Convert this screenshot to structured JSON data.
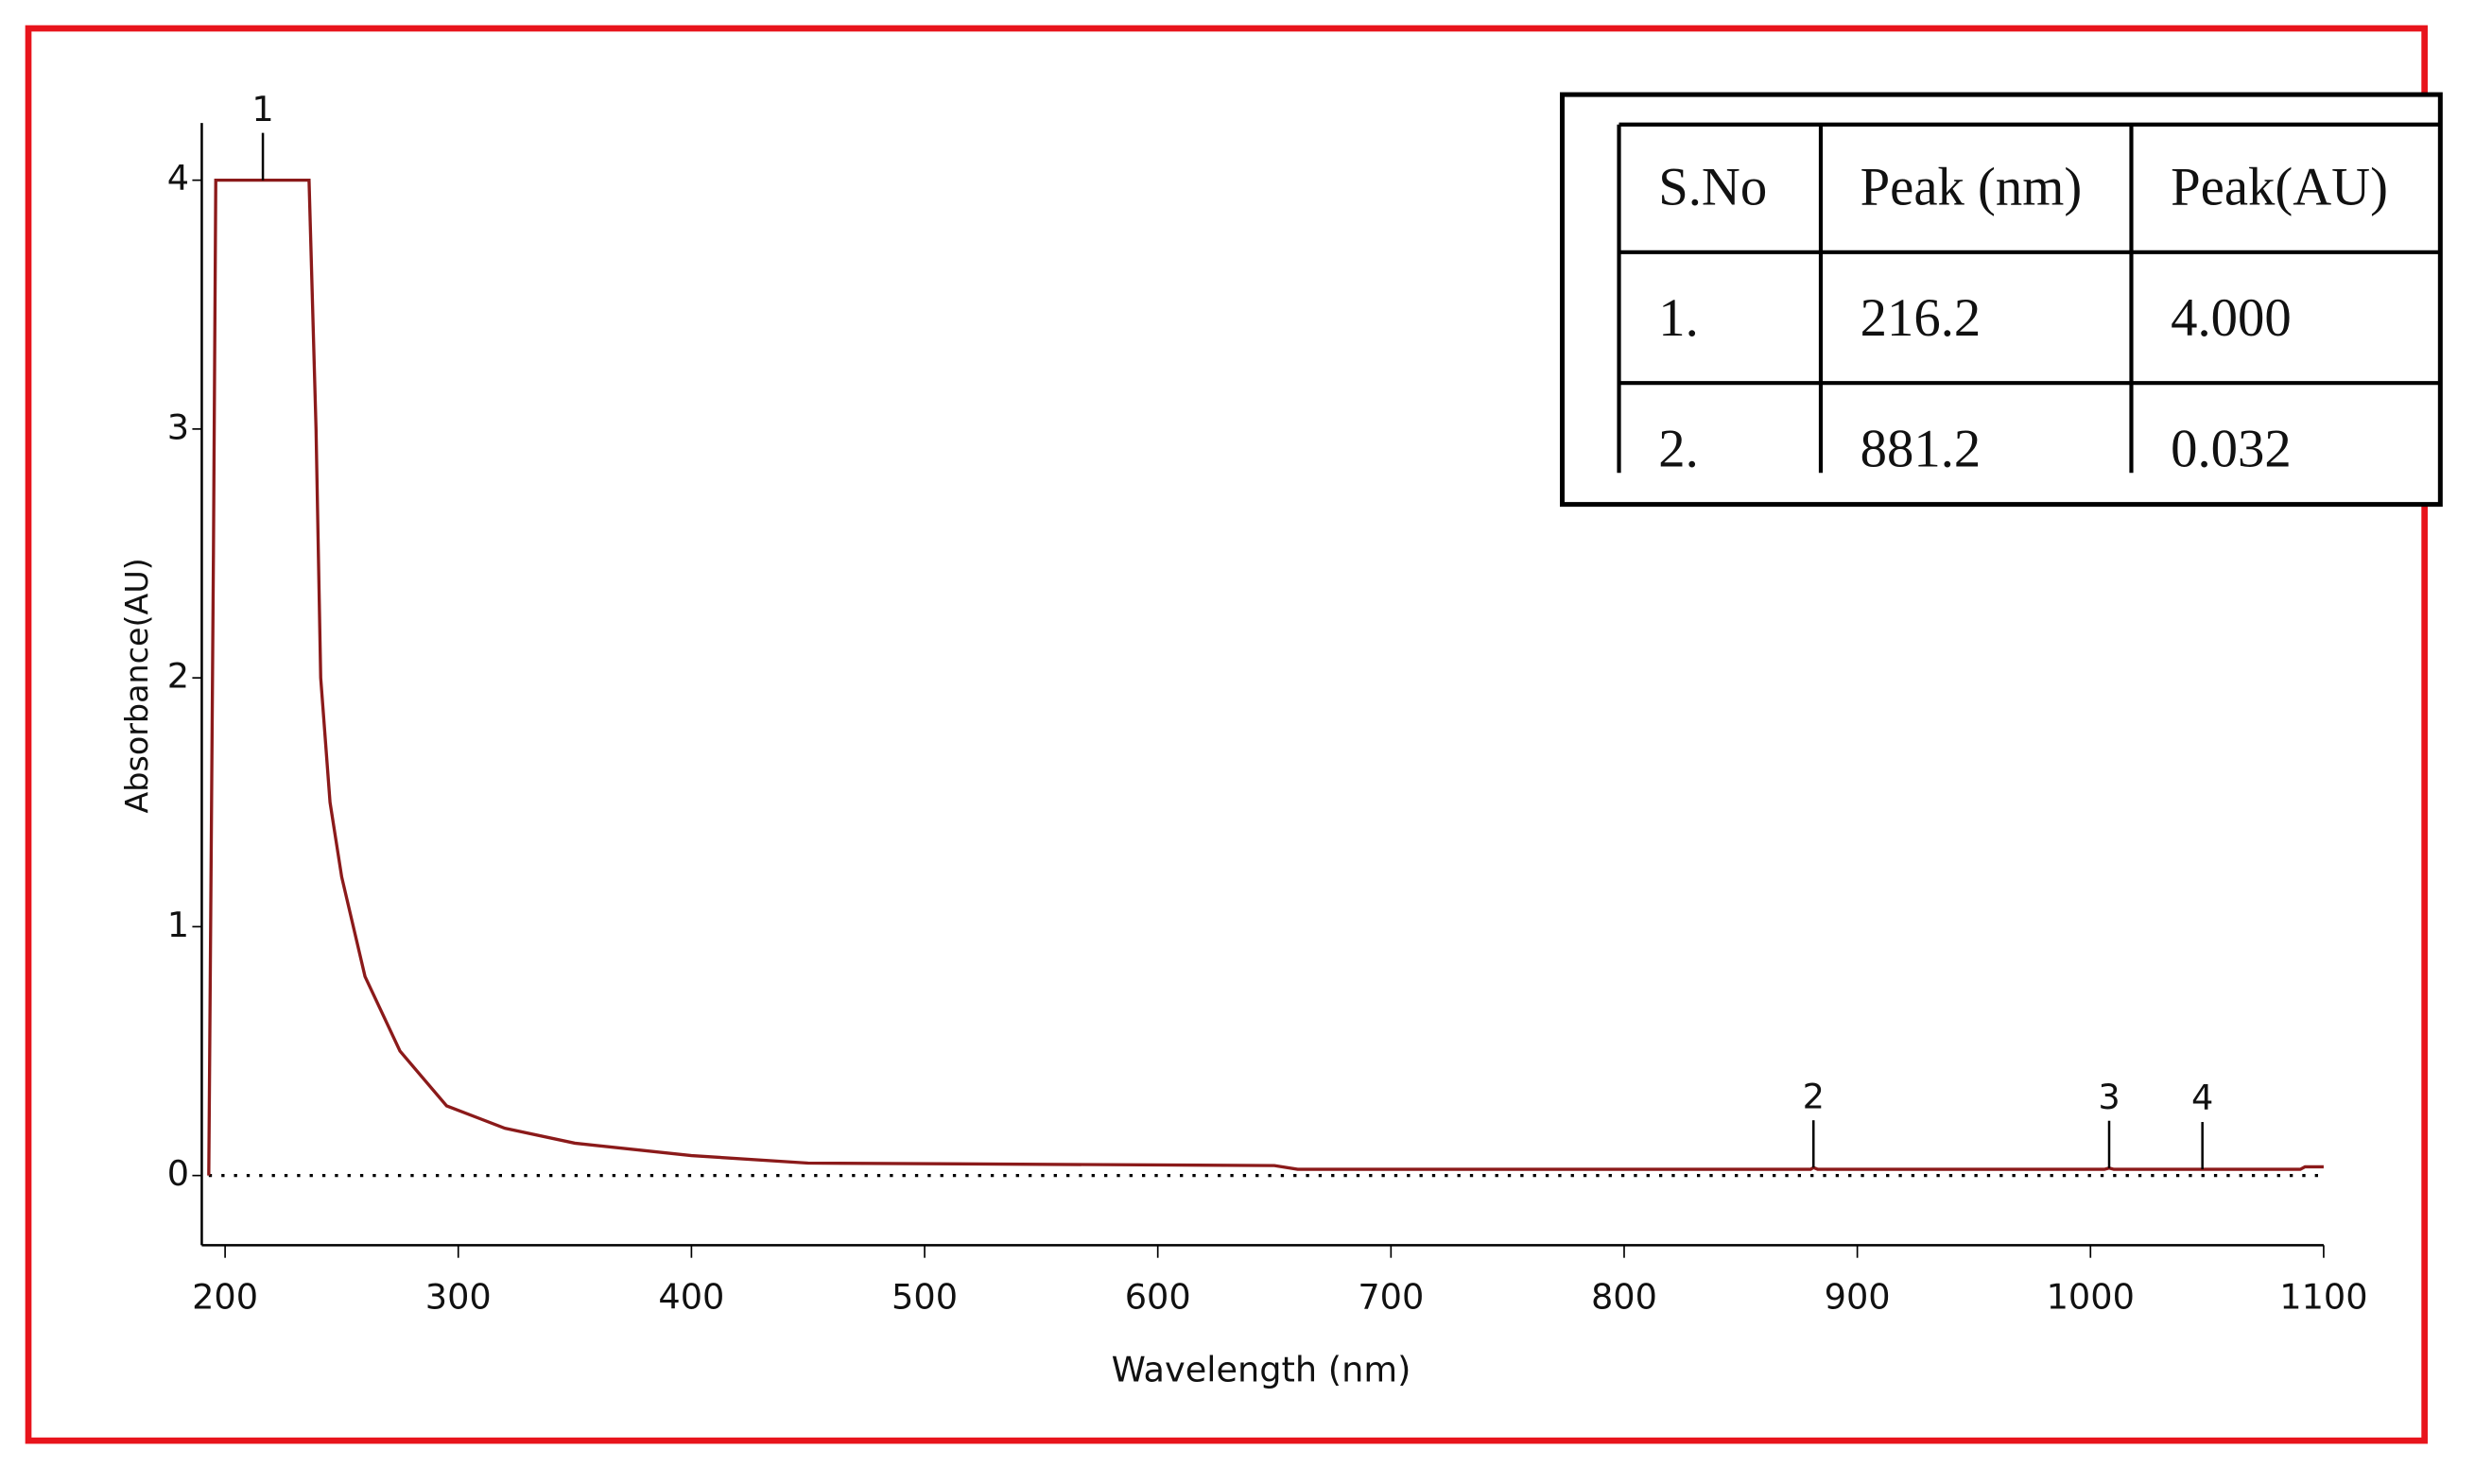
{
  "chart_data": {
    "type": "line",
    "x_label": "Wavelength (nm)",
    "y_label": "Absorbance(AU)",
    "xlim": [
      190,
      1100
    ],
    "ylim": [
      -0.28,
      4.23
    ],
    "xticks": [
      200,
      300,
      400,
      500,
      600,
      700,
      800,
      900,
      1000,
      1100
    ],
    "yticks": [
      0,
      1,
      2,
      3,
      4
    ],
    "baseline": 0,
    "series": [
      {
        "color": "#8b1a1a",
        "x": [
          193,
          195,
          196,
          236,
          239,
          241,
          245,
          250,
          260,
          275,
          295,
          320,
          350,
          400,
          450,
          650,
          660,
          880,
          881.2,
          883,
          1006,
          1008,
          1010,
          1090,
          1092,
          1100
        ],
        "values": [
          0,
          2.5,
          4.0,
          4.0,
          3.0,
          2.0,
          1.5,
          1.2,
          0.8,
          0.5,
          0.28,
          0.19,
          0.13,
          0.08,
          0.05,
          0.04,
          0.025,
          0.025,
          0.032,
          0.025,
          0.025,
          0.03,
          0.025,
          0.025,
          0.035,
          0.035
        ]
      }
    ],
    "peaks": [
      {
        "label": "1",
        "x": 216.2,
        "y": 4.0
      },
      {
        "label": "2",
        "x": 881.2,
        "y": 0.032
      },
      {
        "label": "3",
        "x": 1008,
        "y": 0.03
      },
      {
        "label": "4",
        "x": 1048,
        "y": 0.025
      }
    ]
  },
  "table": {
    "header": [
      "S.No",
      "Peak (nm)",
      "Peak(AU)"
    ],
    "rows": [
      [
        "1.",
        "216.2",
        "4.000"
      ],
      [
        "2.",
        "881.2",
        "0.032"
      ]
    ]
  }
}
